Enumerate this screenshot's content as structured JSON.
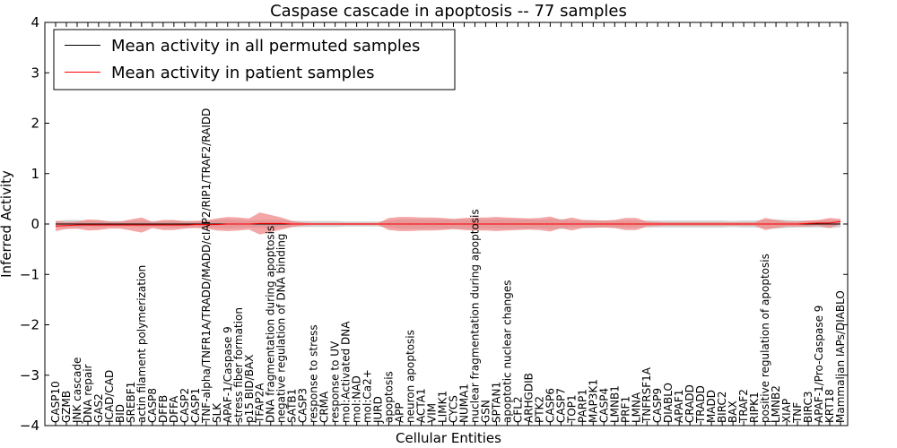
{
  "chart_data": {
    "type": "line",
    "title": "Caspase cascade in apoptosis -- 77 samples",
    "xlabel": "Cellular Entities",
    "ylabel": "Inferred Activity",
    "ylim": [
      -4,
      4
    ],
    "yticks": [
      "4",
      "3",
      "2",
      "1",
      "0",
      "−1",
      "−2",
      "−3",
      "−4"
    ],
    "legend_position": "top-left",
    "categories": [
      "CASP10",
      "GZMB",
      "JNK cascade",
      "DNA repair",
      "GAS2",
      "ICAD/CAD",
      "BID",
      "SREBF1",
      "actin filament polymerization",
      "CASP8",
      "DFFB",
      "DFFA",
      "CASP2",
      "CASP1",
      "TNF-alpha/TNFR1A/TRADD/MADD/cIAP2/RIP1/TRAF2/RAIDD",
      "SLK",
      "APAF-1/Caspase 9",
      "stress fiber formation",
      "p15 BID/BAX",
      "TFAP2A",
      "DNA fragmentation during apoptosis",
      "negative regulation of DNA binding",
      "SATB1",
      "CASP3",
      "response to stress",
      "CRMA",
      "response to UV",
      "mol:Activated DNA",
      "mol:NAD",
      "mol:Ca2+",
      "JURD",
      "apoptosis",
      "APP",
      "neuron apoptosis",
      "ACTA1",
      "VIM",
      "LIMK1",
      "CYCS",
      "NUMA1",
      "nuclear fragmentation during apoptosis",
      "GSN",
      "SPTAN1",
      "apoptotic nuclear changes",
      "CFL2",
      "ARHGDIB",
      "PTK2",
      "CASP6",
      "CASP7",
      "TOP1",
      "PARP1",
      "MAP3K1",
      "CASP4",
      "LMNB1",
      "PRF1",
      "LMNA",
      "TNFRSF1A",
      "CASP9",
      "DIABLO",
      "APAF1",
      "CRADD",
      "TRADD",
      "MADD",
      "BIRC2",
      "BAX",
      "TRAF2",
      "RIPK1",
      "positive regulation of apoptosis",
      "LMNB2",
      "XIAP",
      "TNF",
      "BIRC3",
      "APAF-1/Pro-Caspase 9",
      "KRT18",
      "Mammalian IAPs/DIABLO"
    ],
    "series": [
      {
        "name": "Mean activity in all permuted samples",
        "color": "#000000",
        "band_color": "#c8c8c8",
        "values": [
          0.0,
          0.0,
          0.0,
          0.0,
          0.0,
          0.0,
          0.0,
          0.0,
          0.0,
          0.0,
          0.0,
          0.0,
          0.0,
          0.0,
          0.0,
          0.0,
          0.0,
          0.0,
          0.0,
          0.0,
          0.0,
          0.0,
          0.0,
          0.0,
          0.0,
          0.0,
          0.0,
          0.0,
          0.0,
          0.0,
          0.0,
          0.0,
          0.0,
          0.0,
          0.0,
          0.0,
          0.0,
          0.0,
          0.0,
          0.0,
          0.0,
          0.0,
          0.0,
          0.0,
          0.0,
          0.0,
          0.0,
          0.0,
          0.0,
          0.0,
          0.0,
          0.0,
          0.0,
          0.0,
          0.0,
          0.0,
          0.0,
          0.0,
          0.0,
          0.0,
          0.0,
          0.0,
          0.0,
          0.0,
          0.0,
          0.0,
          0.0,
          0.0,
          0.0,
          0.0,
          0.0,
          0.0,
          0.0,
          0.0
        ],
        "band": [
          0.06,
          0.08,
          0.08,
          0.06,
          0.07,
          0.06,
          0.06,
          0.06,
          0.07,
          0.06,
          0.06,
          0.07,
          0.07,
          0.06,
          0.07,
          0.08,
          0.09,
          0.08,
          0.07,
          0.08,
          0.08,
          0.08,
          0.06,
          0.06,
          0.06,
          0.06,
          0.06,
          0.05,
          0.05,
          0.05,
          0.05,
          0.07,
          0.09,
          0.09,
          0.09,
          0.09,
          0.09,
          0.09,
          0.09,
          0.09,
          0.09,
          0.09,
          0.09,
          0.09,
          0.09,
          0.08,
          0.1,
          0.1,
          0.07,
          0.08,
          0.08,
          0.07,
          0.07,
          0.07,
          0.07,
          0.07,
          0.07,
          0.07,
          0.07,
          0.07,
          0.07,
          0.07,
          0.07,
          0.06,
          0.07,
          0.07,
          0.08,
          0.09,
          0.08,
          0.07,
          0.07,
          0.07,
          0.08,
          0.07
        ]
      },
      {
        "name": "Mean activity in patient samples",
        "color": "#ff0000",
        "band_color": "#f08080",
        "values": [
          -0.04,
          -0.03,
          -0.02,
          -0.02,
          -0.02,
          -0.02,
          -0.02,
          -0.02,
          -0.02,
          -0.02,
          -0.02,
          -0.02,
          -0.02,
          -0.01,
          -0.01,
          -0.01,
          0.0,
          0.0,
          0.0,
          0.01,
          0.01,
          0.01,
          0.0,
          0.0,
          0.0,
          0.0,
          0.0,
          0.0,
          0.0,
          0.0,
          0.0,
          0.0,
          0.0,
          0.0,
          0.0,
          0.0,
          0.0,
          0.0,
          0.0,
          0.0,
          0.0,
          0.0,
          0.0,
          0.0,
          0.0,
          0.0,
          0.0,
          0.0,
          0.0,
          0.0,
          0.0,
          0.0,
          0.0,
          0.0,
          0.0,
          0.0,
          0.0,
          0.0,
          0.0,
          0.0,
          0.0,
          0.0,
          0.0,
          0.0,
          0.0,
          0.0,
          0.0,
          0.0,
          0.0,
          0.0,
          0.01,
          0.02,
          0.02,
          0.05
        ],
        "band": [
          0.1,
          0.07,
          0.07,
          0.11,
          0.1,
          0.07,
          0.07,
          0.11,
          0.15,
          0.06,
          0.1,
          0.1,
          0.07,
          0.07,
          0.08,
          0.12,
          0.14,
          0.13,
          0.11,
          0.22,
          0.17,
          0.12,
          0.06,
          0.03,
          0.02,
          0.02,
          0.02,
          0.02,
          0.02,
          0.02,
          0.02,
          0.12,
          0.14,
          0.14,
          0.13,
          0.13,
          0.12,
          0.1,
          0.12,
          0.13,
          0.13,
          0.14,
          0.13,
          0.12,
          0.11,
          0.12,
          0.15,
          0.08,
          0.13,
          0.08,
          0.07,
          0.07,
          0.08,
          0.12,
          0.12,
          0.05,
          0.04,
          0.03,
          0.03,
          0.03,
          0.03,
          0.03,
          0.03,
          0.03,
          0.03,
          0.03,
          0.12,
          0.08,
          0.05,
          0.05,
          0.06,
          0.06,
          0.1,
          0.05
        ]
      }
    ]
  }
}
